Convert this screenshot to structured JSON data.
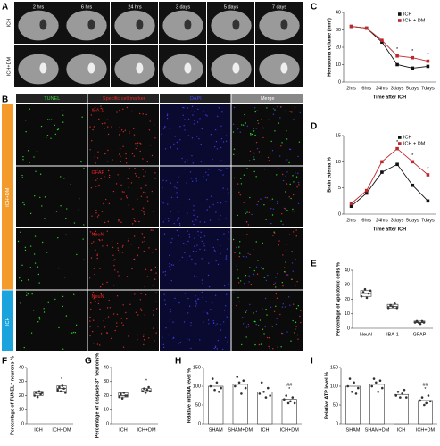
{
  "panels": {
    "A": {
      "letter": "A",
      "times": [
        "2 hrs",
        "6 hrs",
        "24 hrs",
        "3 days",
        "5 days",
        "7 days"
      ],
      "rows": [
        "ICH",
        "ICH+DM"
      ]
    },
    "B": {
      "letter": "B",
      "headers": [
        "TUNEL",
        "Specific cell marker",
        "DAPI",
        "Merge"
      ],
      "markers": [
        "IBA-1",
        "GFAP",
        "NeuN",
        "NeuN"
      ],
      "groups": [
        "ICH+DM",
        "ICH"
      ]
    }
  },
  "chart_data": [
    {
      "type": "line",
      "letter": "C",
      "y_label": "Hematoma volume (mm³)",
      "x_label": "Time after ICH",
      "categories": [
        "2hrs",
        "6hrs",
        "24hrs",
        "3days",
        "5days",
        "7days"
      ],
      "series": [
        {
          "name": "ICH",
          "color": "#111111",
          "values": [
            32,
            31,
            23,
            10,
            8,
            9
          ]
        },
        {
          "name": "ICH + DM",
          "color": "#c0272d",
          "values": [
            32,
            31,
            24,
            15,
            14,
            12
          ]
        }
      ],
      "ylim": [
        0,
        40
      ],
      "yticks": [
        0,
        10,
        20,
        30,
        40
      ],
      "annotations": [
        {
          "x": "3days",
          "text": "*"
        },
        {
          "x": "5days",
          "text": "*"
        },
        {
          "x": "7days",
          "text": "*"
        }
      ]
    },
    {
      "type": "line",
      "letter": "D",
      "y_label": "Brain edema %",
      "x_label": "Time after ICH",
      "categories": [
        "2hrs",
        "6hrs",
        "24hrs",
        "3days",
        "5days",
        "7days"
      ],
      "series": [
        {
          "name": "ICH",
          "color": "#111111",
          "values": [
            1.5,
            4,
            8,
            9.5,
            5.5,
            2.5
          ]
        },
        {
          "name": "ICH + DM",
          "color": "#c0272d",
          "values": [
            2,
            4.5,
            10,
            12.5,
            10,
            7.5
          ]
        }
      ],
      "ylim": [
        0,
        15
      ],
      "yticks": [
        0,
        5,
        10,
        15
      ],
      "annotations": [
        {
          "x": "3days",
          "text": "*"
        },
        {
          "x": "5days",
          "text": "*"
        },
        {
          "x": "7days",
          "text": "*"
        }
      ]
    },
    {
      "type": "box",
      "letter": "E",
      "y_label": "Percentage of apoptotic cells %",
      "categories": [
        "NeuN",
        "IBA-1",
        "GFAP"
      ],
      "points": [
        [
          22,
          25,
          27,
          21,
          24,
          26
        ],
        [
          14,
          16,
          15,
          17,
          14
        ],
        [
          4,
          5,
          4,
          3,
          5,
          4
        ]
      ],
      "q1": [
        22,
        14,
        4
      ],
      "median": [
        24,
        15,
        4
      ],
      "q3": [
        26,
        16.5,
        5
      ],
      "ylim": [
        0,
        40
      ],
      "yticks": [
        0,
        10,
        20,
        30,
        40
      ]
    },
    {
      "type": "box",
      "letter": "F",
      "y_label": "Percentage of TUNEL⁺ neurons %",
      "categories": [
        "ICH",
        "ICH+DM"
      ],
      "points": [
        [
          20,
          22,
          19,
          23,
          21,
          22
        ],
        [
          24,
          26,
          23,
          27,
          25,
          22
        ]
      ],
      "q1": [
        20,
        23
      ],
      "median": [
        21.5,
        25
      ],
      "q3": [
        23,
        27
      ],
      "ylim": [
        0,
        40
      ],
      "yticks": [
        0,
        10,
        20,
        30,
        40
      ],
      "annotations": [
        {
          "x": "ICH+DM",
          "text": "*"
        }
      ]
    },
    {
      "type": "box",
      "letter": "G",
      "y_label": "Percentage of caspase-3⁺ neurons%",
      "categories": [
        "ICH",
        "ICH+DM"
      ],
      "points": [
        [
          19,
          21,
          18,
          22,
          20,
          20
        ],
        [
          23,
          25,
          22,
          24,
          26,
          23
        ]
      ],
      "q1": [
        19,
        22.5
      ],
      "median": [
        20,
        23.5
      ],
      "q3": [
        22,
        25
      ],
      "ylim": [
        0,
        40
      ],
      "yticks": [
        0,
        10,
        20,
        30,
        40
      ],
      "annotations": [
        {
          "x": "ICH+DM",
          "text": "*"
        }
      ]
    },
    {
      "type": "bar",
      "letter": "H",
      "y_label": "Relative mtDNA level %",
      "categories": [
        "SHAM",
        "SHAM+DM",
        "ICH",
        "ICH+DM"
      ],
      "values": [
        100,
        105,
        85,
        65
      ],
      "points": [
        [
          100,
          120,
          90,
          110,
          85,
          95
        ],
        [
          100,
          125,
          110,
          80,
          115,
          95
        ],
        [
          80,
          110,
          85,
          70,
          95,
          75
        ],
        [
          65,
          75,
          55,
          60,
          70,
          55
        ]
      ],
      "ylim": [
        0,
        150
      ],
      "yticks": [
        0,
        50,
        100,
        150
      ],
      "annotations": [
        {
          "x": "ICH+DM",
          "text": "*"
        },
        {
          "x": "ICH+DM",
          "text": "##"
        }
      ]
    },
    {
      "type": "bar",
      "letter": "I",
      "y_label": "Relative ATP level %",
      "categories": [
        "SHAM",
        "SHAM+DM",
        "ICH",
        "ICH+DM"
      ],
      "values": [
        100,
        105,
        78,
        62
      ],
      "points": [
        [
          100,
          120,
          85,
          110,
          80,
          95
        ],
        [
          100,
          120,
          110,
          85,
          115,
          95
        ],
        [
          75,
          85,
          70,
          80,
          90,
          70
        ],
        [
          62,
          70,
          50,
          55,
          75,
          60
        ]
      ],
      "ylim": [
        0,
        150
      ],
      "yticks": [
        0,
        50,
        100,
        150
      ],
      "annotations": [
        {
          "x": "ICH+DM",
          "text": "*"
        },
        {
          "x": "ICH+DM",
          "text": "##"
        }
      ]
    }
  ]
}
